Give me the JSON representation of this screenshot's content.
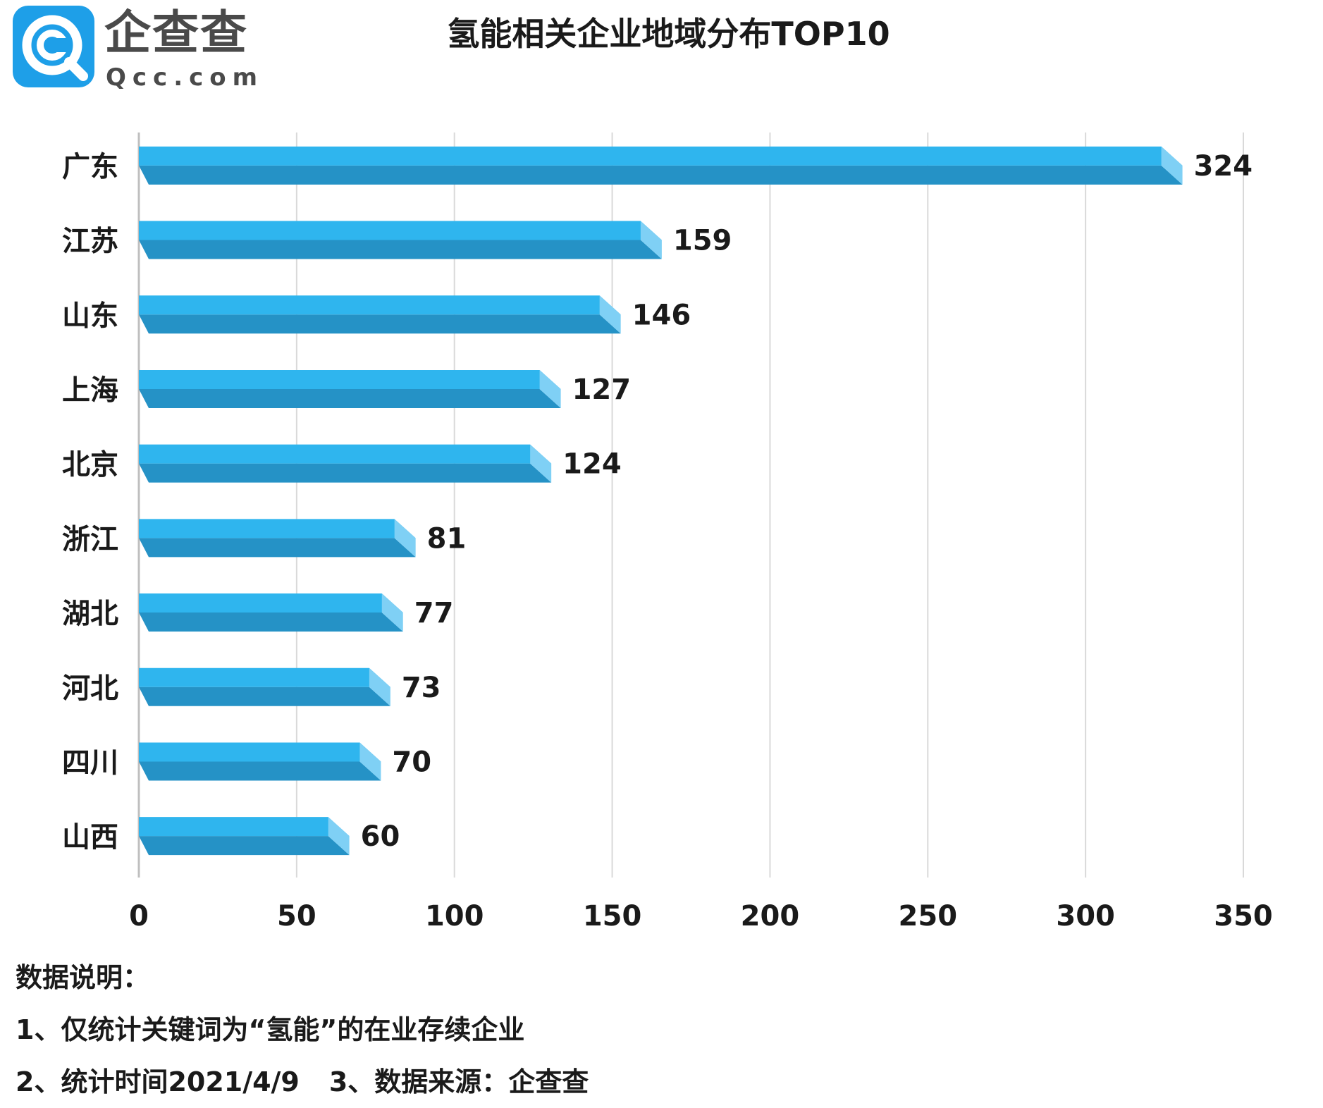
{
  "brand": {
    "name_cn": "企查查",
    "name_en": "Qcc.com",
    "logo_color": "#1e9fe8"
  },
  "chart_data": {
    "type": "bar",
    "orientation": "horizontal",
    "title": "氢能相关企业地域分布TOP10",
    "categories": [
      "广东",
      "江苏",
      "山东",
      "上海",
      "北京",
      "浙江",
      "湖北",
      "河北",
      "四川",
      "山西"
    ],
    "values": [
      324,
      159,
      146,
      127,
      124,
      81,
      77,
      73,
      70,
      60
    ],
    "xlim": [
      0,
      350
    ],
    "xticks": [
      0,
      50,
      100,
      150,
      200,
      250,
      300,
      350
    ],
    "xlabel": "",
    "ylabel": "",
    "grid": "vertical",
    "bar_color": "#2fb5ee",
    "bar_shade": "#2592c6",
    "data_labels": true
  },
  "notes": {
    "heading": "数据说明：",
    "line1": "1、仅统计关键词为“氢能”的在业存续企业",
    "line2a": "2、统计时间2021/4/9",
    "line2b": "3、数据来源：企查查"
  }
}
